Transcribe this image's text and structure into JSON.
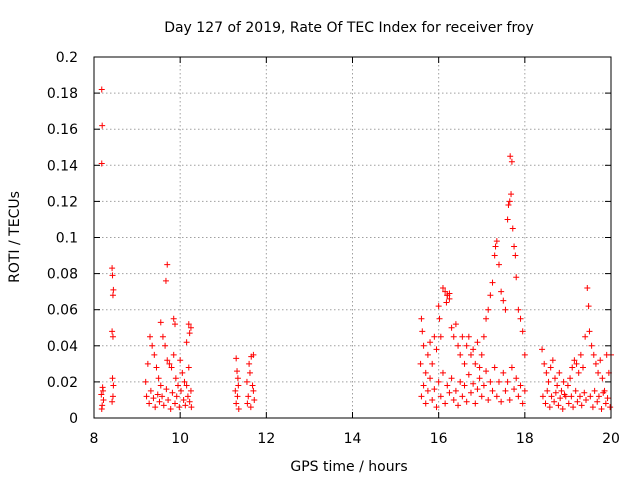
{
  "chart_data": {
    "type": "scatter",
    "title": "Day 127 of 2019, Rate Of TEC Index for receiver froy",
    "xlabel": "GPS time / hours",
    "ylabel": "ROTI / TECUs",
    "xlim": [
      8,
      20
    ],
    "ylim": [
      0,
      0.2
    ],
    "grid": true,
    "marker": "+",
    "color": "#ff0000",
    "x_ticks": [
      8,
      10,
      12,
      14,
      16,
      18,
      20
    ],
    "x_tick_labels": [
      "8",
      "10",
      "12",
      "14",
      "16",
      "18",
      "20"
    ],
    "y_ticks": [
      0,
      0.02,
      0.04,
      0.06,
      0.08,
      0.1,
      0.12,
      0.14,
      0.16,
      0.18,
      0.2
    ],
    "y_tick_labels": [
      "0",
      "0.02",
      "0.04",
      "0.06",
      "0.08",
      "0.1",
      "0.12",
      "0.14",
      "0.16",
      "0.18",
      "0.2"
    ],
    "series": [
      {
        "name": "ROTI",
        "points": [
          [
            8.18,
            0.182
          ],
          [
            8.19,
            0.162
          ],
          [
            8.18,
            0.141
          ],
          [
            8.2,
            0.017
          ],
          [
            8.17,
            0.013
          ],
          [
            8.22,
            0.01
          ],
          [
            8.19,
            0.007
          ],
          [
            8.21,
            0.015
          ],
          [
            8.18,
            0.005
          ],
          [
            8.42,
            0.083
          ],
          [
            8.43,
            0.079
          ],
          [
            8.45,
            0.071
          ],
          [
            8.44,
            0.068
          ],
          [
            8.42,
            0.048
          ],
          [
            8.44,
            0.045
          ],
          [
            8.43,
            0.022
          ],
          [
            8.45,
            0.018
          ],
          [
            8.44,
            0.012
          ],
          [
            8.42,
            0.009
          ],
          [
            9.7,
            0.085
          ],
          [
            9.67,
            0.076
          ],
          [
            9.55,
            0.053
          ],
          [
            9.85,
            0.055
          ],
          [
            9.88,
            0.052
          ],
          [
            10.2,
            0.052
          ],
          [
            10.25,
            0.05
          ],
          [
            10.22,
            0.047
          ],
          [
            10.15,
            0.042
          ],
          [
            9.2,
            0.02
          ],
          [
            9.25,
            0.03
          ],
          [
            9.3,
            0.045
          ],
          [
            9.35,
            0.04
          ],
          [
            9.4,
            0.035
          ],
          [
            9.45,
            0.028
          ],
          [
            9.5,
            0.022
          ],
          [
            9.55,
            0.018
          ],
          [
            9.6,
            0.045
          ],
          [
            9.65,
            0.04
          ],
          [
            9.7,
            0.032
          ],
          [
            9.75,
            0.03
          ],
          [
            9.8,
            0.028
          ],
          [
            9.85,
            0.035
          ],
          [
            9.9,
            0.022
          ],
          [
            9.95,
            0.018
          ],
          [
            10.0,
            0.032
          ],
          [
            10.05,
            0.025
          ],
          [
            10.1,
            0.02
          ],
          [
            10.15,
            0.018
          ],
          [
            10.2,
            0.028
          ],
          [
            10.25,
            0.015
          ],
          [
            9.22,
            0.012
          ],
          [
            9.28,
            0.008
          ],
          [
            9.32,
            0.015
          ],
          [
            9.38,
            0.011
          ],
          [
            9.42,
            0.006
          ],
          [
            9.48,
            0.013
          ],
          [
            9.52,
            0.009
          ],
          [
            9.58,
            0.012
          ],
          [
            9.62,
            0.007
          ],
          [
            9.68,
            0.016
          ],
          [
            9.72,
            0.01
          ],
          [
            9.78,
            0.005
          ],
          [
            9.82,
            0.014
          ],
          [
            9.88,
            0.008
          ],
          [
            9.92,
            0.012
          ],
          [
            9.98,
            0.006
          ],
          [
            10.02,
            0.015
          ],
          [
            10.08,
            0.01
          ],
          [
            10.12,
            0.007
          ],
          [
            10.18,
            0.012
          ],
          [
            10.22,
            0.009
          ],
          [
            10.26,
            0.006
          ],
          [
            11.3,
            0.033
          ],
          [
            11.32,
            0.026
          ],
          [
            11.35,
            0.018
          ],
          [
            11.33,
            0.012
          ],
          [
            11.3,
            0.008
          ],
          [
            11.36,
            0.005
          ],
          [
            11.28,
            0.015
          ],
          [
            11.34,
            0.022
          ],
          [
            11.55,
            0.02
          ],
          [
            11.6,
            0.03
          ],
          [
            11.65,
            0.034
          ],
          [
            11.7,
            0.035
          ],
          [
            11.62,
            0.025
          ],
          [
            11.68,
            0.018
          ],
          [
            11.58,
            0.012
          ],
          [
            11.72,
            0.01
          ],
          [
            11.64,
            0.006
          ],
          [
            11.56,
            0.008
          ],
          [
            11.7,
            0.015
          ],
          [
            15.6,
            0.055
          ],
          [
            15.62,
            0.048
          ],
          [
            15.65,
            0.04
          ],
          [
            15.58,
            0.03
          ],
          [
            15.7,
            0.025
          ],
          [
            15.75,
            0.035
          ],
          [
            15.8,
            0.042
          ],
          [
            15.85,
            0.03
          ],
          [
            15.9,
            0.045
          ],
          [
            15.95,
            0.038
          ],
          [
            16.0,
            0.062
          ],
          [
            16.02,
            0.055
          ],
          [
            16.05,
            0.045
          ],
          [
            16.1,
            0.072
          ],
          [
            16.15,
            0.07
          ],
          [
            16.2,
            0.068
          ],
          [
            16.25,
            0.069
          ],
          [
            16.3,
            0.05
          ],
          [
            16.35,
            0.045
          ],
          [
            16.4,
            0.052
          ],
          [
            16.45,
            0.04
          ],
          [
            16.5,
            0.035
          ],
          [
            16.55,
            0.045
          ],
          [
            16.6,
            0.03
          ],
          [
            16.65,
            0.04
          ],
          [
            16.7,
            0.045
          ],
          [
            16.75,
            0.035
          ],
          [
            16.8,
            0.038
          ],
          [
            16.85,
            0.03
          ],
          [
            16.9,
            0.042
          ],
          [
            16.95,
            0.028
          ],
          [
            17.0,
            0.035
          ],
          [
            17.05,
            0.045
          ],
          [
            17.1,
            0.055
          ],
          [
            17.15,
            0.06
          ],
          [
            17.2,
            0.068
          ],
          [
            17.25,
            0.075
          ],
          [
            17.3,
            0.09
          ],
          [
            17.32,
            0.095
          ],
          [
            17.35,
            0.098
          ],
          [
            17.4,
            0.085
          ],
          [
            17.45,
            0.07
          ],
          [
            17.5,
            0.065
          ],
          [
            17.55,
            0.06
          ],
          [
            17.6,
            0.11
          ],
          [
            17.62,
            0.118
          ],
          [
            17.65,
            0.12
          ],
          [
            17.68,
            0.124
          ],
          [
            17.66,
            0.145
          ],
          [
            17.7,
            0.142
          ],
          [
            17.72,
            0.105
          ],
          [
            17.75,
            0.095
          ],
          [
            17.78,
            0.09
          ],
          [
            17.8,
            0.078
          ],
          [
            17.85,
            0.06
          ],
          [
            17.9,
            0.055
          ],
          [
            17.95,
            0.048
          ],
          [
            18.0,
            0.035
          ],
          [
            15.6,
            0.012
          ],
          [
            15.65,
            0.018
          ],
          [
            15.7,
            0.008
          ],
          [
            15.75,
            0.015
          ],
          [
            15.8,
            0.022
          ],
          [
            15.85,
            0.01
          ],
          [
            15.9,
            0.016
          ],
          [
            15.95,
            0.006
          ],
          [
            16.0,
            0.02
          ],
          [
            16.05,
            0.012
          ],
          [
            16.1,
            0.025
          ],
          [
            16.15,
            0.008
          ],
          [
            16.2,
            0.018
          ],
          [
            16.25,
            0.014
          ],
          [
            16.3,
            0.022
          ],
          [
            16.35,
            0.01
          ],
          [
            16.4,
            0.015
          ],
          [
            16.45,
            0.007
          ],
          [
            16.5,
            0.02
          ],
          [
            16.55,
            0.012
          ],
          [
            16.6,
            0.018
          ],
          [
            16.65,
            0.009
          ],
          [
            16.7,
            0.024
          ],
          [
            16.75,
            0.014
          ],
          [
            16.8,
            0.019
          ],
          [
            16.85,
            0.008
          ],
          [
            16.9,
            0.016
          ],
          [
            16.95,
            0.022
          ],
          [
            17.0,
            0.012
          ],
          [
            17.05,
            0.018
          ],
          [
            17.1,
            0.026
          ],
          [
            17.15,
            0.01
          ],
          [
            17.2,
            0.02
          ],
          [
            17.25,
            0.015
          ],
          [
            17.3,
            0.028
          ],
          [
            17.35,
            0.012
          ],
          [
            17.4,
            0.02
          ],
          [
            17.45,
            0.009
          ],
          [
            17.5,
            0.025
          ],
          [
            17.55,
            0.015
          ],
          [
            17.6,
            0.02
          ],
          [
            17.65,
            0.01
          ],
          [
            17.7,
            0.028
          ],
          [
            17.75,
            0.016
          ],
          [
            17.8,
            0.022
          ],
          [
            17.85,
            0.012
          ],
          [
            17.9,
            0.018
          ],
          [
            17.95,
            0.008
          ],
          [
            18.0,
            0.015
          ],
          [
            16.2,
            0.068
          ],
          [
            16.25,
            0.066
          ],
          [
            16.18,
            0.064
          ],
          [
            18.4,
            0.038
          ],
          [
            18.45,
            0.03
          ],
          [
            18.5,
            0.025
          ],
          [
            18.55,
            0.02
          ],
          [
            18.6,
            0.028
          ],
          [
            18.65,
            0.032
          ],
          [
            18.7,
            0.022
          ],
          [
            18.75,
            0.018
          ],
          [
            18.8,
            0.025
          ],
          [
            18.85,
            0.015
          ],
          [
            18.9,
            0.02
          ],
          [
            18.95,
            0.012
          ],
          [
            19.0,
            0.018
          ],
          [
            19.05,
            0.022
          ],
          [
            19.1,
            0.028
          ],
          [
            19.15,
            0.032
          ],
          [
            19.2,
            0.03
          ],
          [
            19.25,
            0.025
          ],
          [
            19.3,
            0.035
          ],
          [
            19.35,
            0.028
          ],
          [
            19.4,
            0.045
          ],
          [
            19.45,
            0.072
          ],
          [
            19.48,
            0.062
          ],
          [
            19.5,
            0.048
          ],
          [
            19.55,
            0.04
          ],
          [
            19.6,
            0.035
          ],
          [
            19.65,
            0.03
          ],
          [
            19.7,
            0.025
          ],
          [
            19.75,
            0.032
          ],
          [
            19.8,
            0.022
          ],
          [
            19.85,
            0.015
          ],
          [
            19.9,
            0.035
          ],
          [
            19.95,
            0.025
          ],
          [
            20.0,
            0.035
          ],
          [
            18.42,
            0.012
          ],
          [
            18.48,
            0.008
          ],
          [
            18.52,
            0.015
          ],
          [
            18.58,
            0.006
          ],
          [
            18.62,
            0.012
          ],
          [
            18.68,
            0.009
          ],
          [
            18.72,
            0.014
          ],
          [
            18.78,
            0.007
          ],
          [
            18.82,
            0.011
          ],
          [
            18.88,
            0.005
          ],
          [
            18.92,
            0.013
          ],
          [
            19.02,
            0.008
          ],
          [
            19.08,
            0.012
          ],
          [
            19.12,
            0.006
          ],
          [
            19.18,
            0.015
          ],
          [
            19.22,
            0.009
          ],
          [
            19.28,
            0.012
          ],
          [
            19.32,
            0.007
          ],
          [
            19.38,
            0.014
          ],
          [
            19.42,
            0.01
          ],
          [
            19.52,
            0.012
          ],
          [
            19.58,
            0.006
          ],
          [
            19.62,
            0.015
          ],
          [
            19.68,
            0.009
          ],
          [
            19.72,
            0.012
          ],
          [
            19.78,
            0.005
          ],
          [
            19.82,
            0.014
          ],
          [
            19.88,
            0.008
          ],
          [
            19.92,
            0.011
          ],
          [
            19.98,
            0.006
          ]
        ]
      }
    ]
  }
}
